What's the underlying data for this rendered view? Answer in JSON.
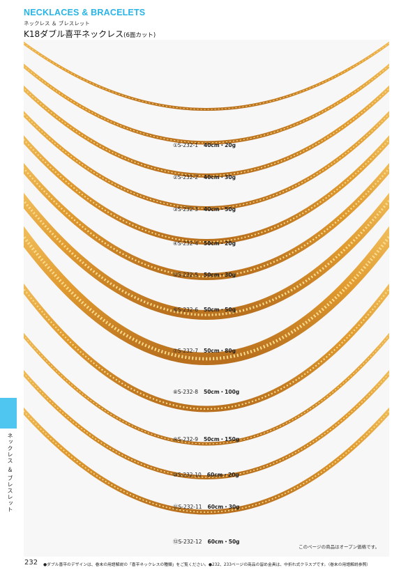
{
  "header": {
    "title": "NECKLACES & BRACELETS",
    "subtitle": "ネックレス ＆ ブレスレット"
  },
  "product": {
    "title": "K18ダブル喜平ネックレス",
    "cut_note": "(6面カット)"
  },
  "items": [
    {
      "code": "①S-232-1",
      "spec": "40cm・20g"
    },
    {
      "code": "②S-232-2",
      "spec": "40cm・30g"
    },
    {
      "code": "③S-232-3",
      "spec": "40cm・50g"
    },
    {
      "code": "④S-232-4",
      "spec": "50cm・20g"
    },
    {
      "code": "⑤S-232-5",
      "spec": "50cm・30g"
    },
    {
      "code": "⑥S-232-6",
      "spec": "50cm・50g"
    },
    {
      "code": "⑦S-232-7",
      "spec": "50cm・80g"
    },
    {
      "code": "⑧S-232-8",
      "spec": "50cm・100g"
    },
    {
      "code": "⑨S-232-9",
      "spec": "50cm・150g"
    },
    {
      "code": "⑩S-232-10",
      "spec": "60cm・20g"
    },
    {
      "code": "⑪S-232-11",
      "spec": "60cm・30g"
    },
    {
      "code": "⑫S-232-12",
      "spec": "60cm・50g"
    }
  ],
  "photo_note": "このページの商品はオープン価格です。",
  "side_tab": {
    "label": "ネックレス ＆ ブレスレット"
  },
  "footer": {
    "page_number": "232",
    "note": "●ダブル喜平のデザインは、巻末の用語解説の「喜平ネックレスの種類」をご覧ください。●232、233ページの商品の留め金具は、中折れ式クラスプです。（巻末の用語解説参照）"
  },
  "colors": {
    "accent": "#27b4e6",
    "tab": "#4fc6ef",
    "gold": "#e0a237",
    "gold_dark": "#b5701c",
    "background": "#f7f7f7"
  }
}
